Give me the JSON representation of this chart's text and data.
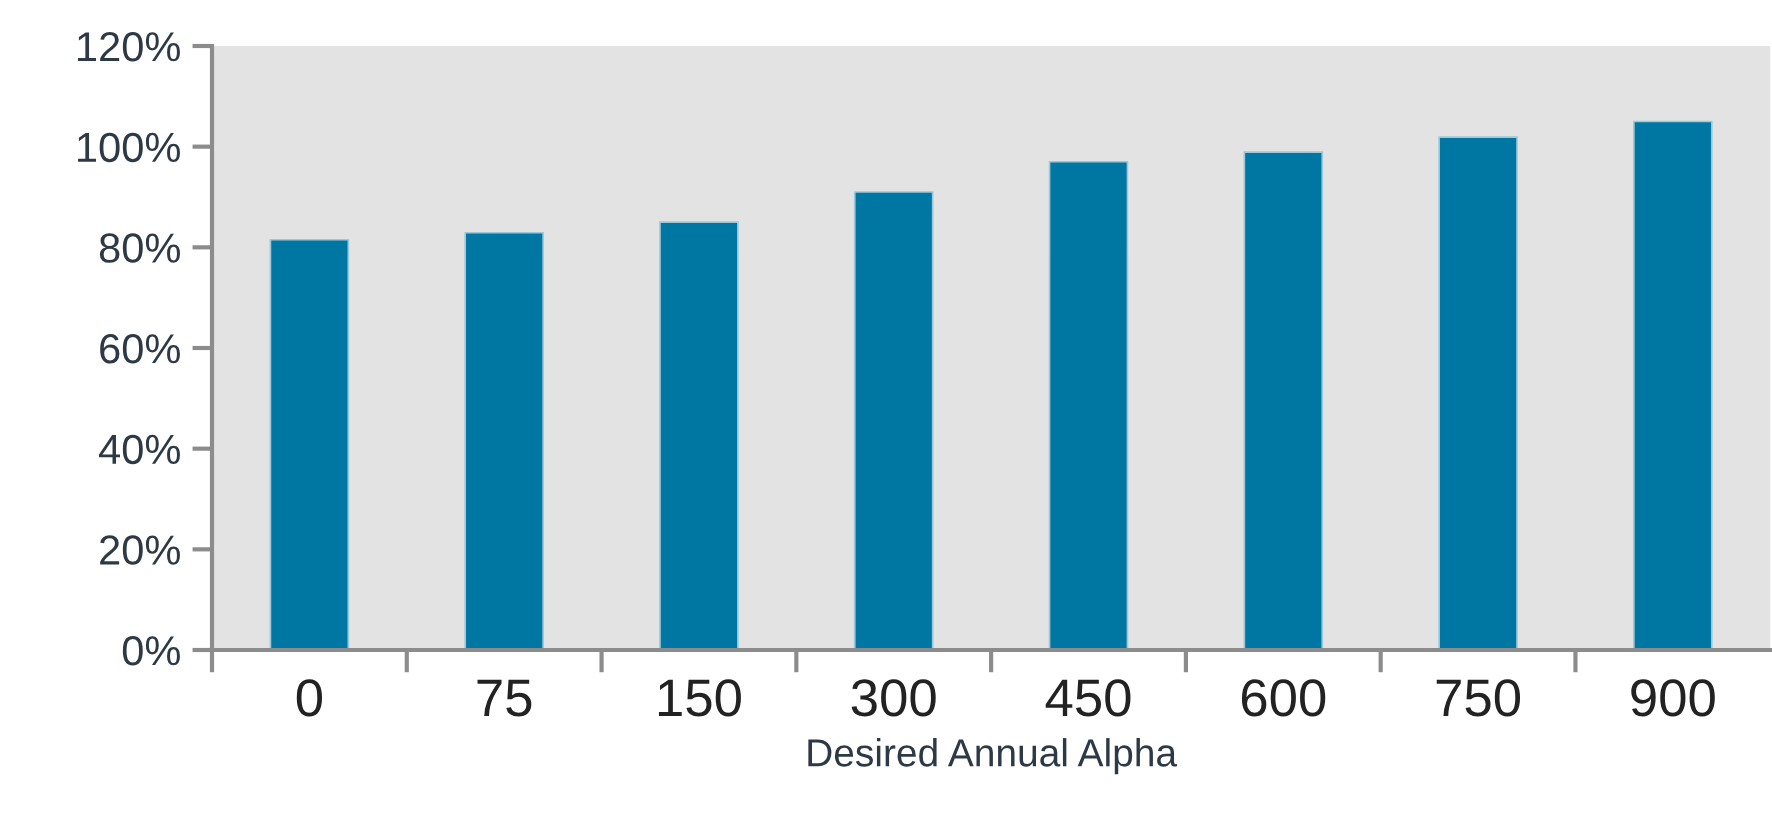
{
  "chart_data": {
    "type": "bar",
    "xlabel": "Desired Annual Alpha",
    "categories": [
      "0",
      "75",
      "150",
      "300",
      "450",
      "600",
      "750",
      "900"
    ],
    "values": [
      81.5,
      82.9,
      85.0,
      91.0,
      97.0,
      98.9,
      101.9,
      105.0
    ],
    "color": "#0077a2",
    "ylim": [
      0,
      120
    ],
    "yticks": [
      {
        "value": 0,
        "label": "0%"
      },
      {
        "value": 20,
        "label": "20%"
      },
      {
        "value": 40,
        "label": "40%"
      },
      {
        "value": 60,
        "label": "60%"
      },
      {
        "value": 80,
        "label": "80%"
      },
      {
        "value": 100,
        "label": "100%"
      },
      {
        "value": 120,
        "label": "120%"
      }
    ],
    "grid": false
  }
}
